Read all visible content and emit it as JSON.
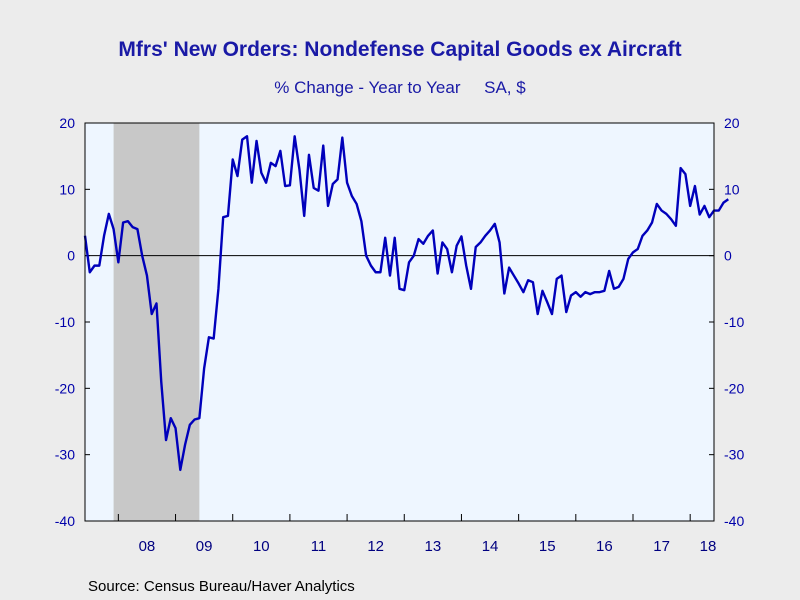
{
  "colors": {
    "series": "#0000BB",
    "plot_bg": "#EEF6FF",
    "recession": "#C8C8C8",
    "axis_text": "#0000AA"
  },
  "chart_data": {
    "type": "line",
    "title": "Mfrs' New Orders: Nondefense Capital Goods ex Aircraft",
    "subtitle": "% Change - Year to Year     SA, $",
    "source": "Source:  Census Bureau/Haver Analytics",
    "ylim": [
      -40,
      20
    ],
    "yticks": [
      20,
      10,
      0,
      -10,
      -20,
      -30,
      -40
    ],
    "ytick_labels": [
      "20",
      "10",
      "0",
      "-10",
      "-20",
      "-30",
      "-40"
    ],
    "x_start": "2007-06",
    "x_end": "2018-06",
    "year_labels": [
      "08",
      "09",
      "10",
      "11",
      "12",
      "13",
      "14",
      "15",
      "16",
      "17",
      "18"
    ],
    "recession_shading": {
      "start": "2007-12",
      "end": "2009-06"
    },
    "zero_line": true,
    "series": [
      {
        "x_start": "2007-06",
        "frequency": "monthly",
        "values": [
          3,
          -2.5,
          -1.5,
          -1.5,
          3,
          6.3,
          4,
          -1,
          5,
          5.2,
          4.3,
          4,
          0,
          -3,
          -8.8,
          -7.2,
          -19,
          -27.8,
          -24.5,
          -26,
          -32.3,
          -28.5,
          -25.5,
          -24.7,
          -24.5,
          -17,
          -12.3,
          -12.5,
          -5,
          5.8,
          6,
          14.5,
          12,
          17.5,
          18,
          11,
          17.3,
          12.5,
          11,
          14,
          13.5,
          15.8,
          10.5,
          10.6,
          18,
          13,
          6,
          15.2,
          10.2,
          9.8,
          16.6,
          7.5,
          10.8,
          11.5,
          17.8,
          11,
          9,
          7.8,
          5.2,
          0,
          -1.5,
          -2.5,
          -2.5,
          2.7,
          -3,
          2.7,
          -5,
          -5.2,
          -1,
          0,
          2.5,
          1.8,
          3,
          3.8,
          -2.7,
          2,
          1,
          -2.5,
          1.5,
          2.9,
          -1.5,
          -5,
          1.3,
          2,
          3,
          3.8,
          4.8,
          2,
          -5.7,
          -1.8,
          -3,
          -4.2,
          -5.5,
          -3.7,
          -4,
          -8.8,
          -5.3,
          -7,
          -8.8,
          -3.5,
          -3,
          -8.5,
          -6,
          -5.5,
          -6.2,
          -5.5,
          -5.8,
          -5.5,
          -5.5,
          -5.3,
          -2.3,
          -5,
          -4.7,
          -3.5,
          -0.5,
          0.5,
          1,
          3,
          3.8,
          5,
          7.8,
          6.8,
          6.3,
          5.5,
          4.5,
          13.2,
          12.3,
          7.5,
          10.5,
          6.2,
          7.5,
          5.8,
          6.8,
          6.8,
          8,
          8.5
        ]
      }
    ]
  }
}
